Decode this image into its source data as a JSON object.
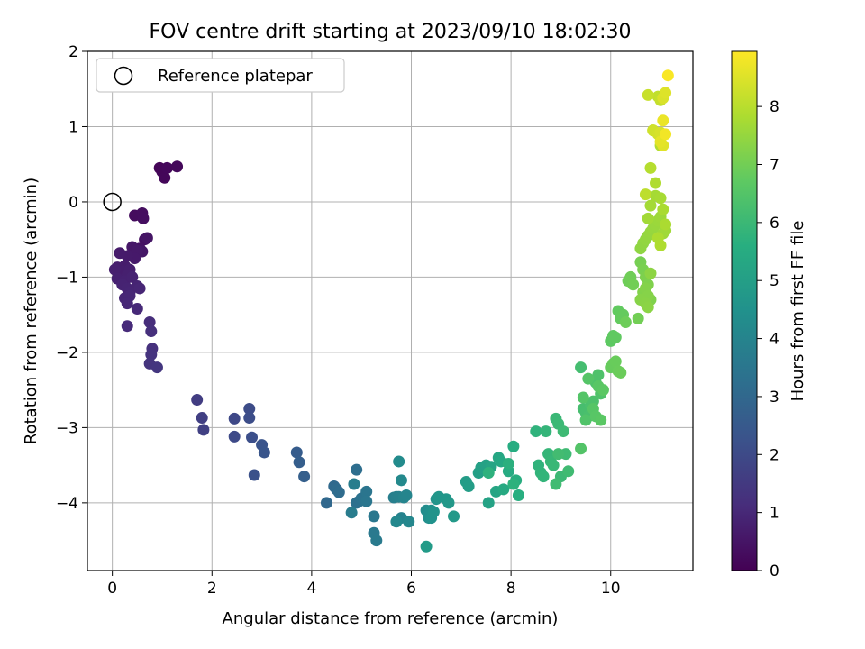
{
  "chart_data": {
    "type": "scatter",
    "title": "FOV centre drift starting at 2023/09/10 18:02:30",
    "xlabel": "Angular distance from reference (arcmin)",
    "ylabel": "Rotation from reference (arcmin)",
    "xlim": [
      -0.5,
      11.65
    ],
    "ylim": [
      -4.9,
      2.0
    ],
    "xticks": [
      0,
      2,
      4,
      6,
      8,
      10
    ],
    "yticks": [
      2,
      1,
      0,
      -1,
      -2,
      -3,
      -4
    ],
    "grid": true,
    "legend": {
      "position": "top-left",
      "entries": [
        {
          "label": "Reference platepar",
          "marker": "open-circle"
        }
      ]
    },
    "reference_point": {
      "x": 0,
      "y": 0
    },
    "colorbar": {
      "label": "Hours from first FF file",
      "colormap": "viridis",
      "range": [
        0,
        8.95
      ],
      "ticks": [
        0,
        1,
        2,
        3,
        4,
        5,
        6,
        7,
        8
      ]
    },
    "series": [
      {
        "x": [
          0.95,
          1.0,
          1.05,
          1.1,
          1.3,
          0.45,
          0.6,
          0.62,
          0.65,
          0.55,
          0.7,
          0.6,
          0.4,
          0.5,
          0.45,
          0.3,
          0.15,
          0.25,
          0.1,
          0.2,
          0.35,
          0.05,
          0.3,
          0.1,
          0.25,
          0.4,
          0.2,
          0.3,
          0.5,
          0.35,
          0.55,
          0.25,
          0.35,
          0.3,
          0.5,
          0.3,
          0.75,
          0.78,
          0.8,
          0.78,
          0.75,
          0.9
        ],
        "y": [
          0.45,
          0.4,
          0.32,
          0.45,
          0.47,
          -0.18,
          -0.15,
          -0.22,
          -0.5,
          -0.62,
          -0.48,
          -0.66,
          -0.6,
          -0.65,
          -0.75,
          -0.72,
          -0.68,
          -0.85,
          -0.87,
          -0.92,
          -0.9,
          -0.9,
          -0.98,
          -1.02,
          -1.05,
          -1.0,
          -1.1,
          -1.15,
          -1.12,
          -1.2,
          -1.15,
          -1.28,
          -1.25,
          -1.35,
          -1.42,
          -1.65,
          -1.6,
          -1.72,
          -1.95,
          -2.03,
          -2.15,
          -2.2
        ],
        "t": [
          0.1,
          0.12,
          0.14,
          0.16,
          0.18,
          0.3,
          0.32,
          0.34,
          0.4,
          0.45,
          0.5,
          0.55,
          0.58,
          0.6,
          0.62,
          0.64,
          0.66,
          0.68,
          0.7,
          0.72,
          0.74,
          0.76,
          0.78,
          0.8,
          0.82,
          0.84,
          0.86,
          0.88,
          0.9,
          0.92,
          0.94,
          0.96,
          0.98,
          1.0,
          1.02,
          1.08,
          1.15,
          1.2,
          1.25,
          1.3,
          1.35,
          1.4
        ]
      },
      {
        "x": [
          1.7,
          1.8,
          1.83,
          2.45,
          2.45,
          2.75,
          2.75,
          2.8,
          2.85,
          3.0,
          3.05,
          3.7,
          3.75,
          3.85,
          4.3,
          4.45,
          4.5,
          4.55,
          4.9,
          4.95,
          4.9,
          5.0,
          5.05,
          5.1,
          5.1,
          5.25,
          5.25,
          5.3,
          4.8,
          4.85
        ],
        "y": [
          -2.63,
          -2.87,
          -3.03,
          -2.88,
          -3.12,
          -2.75,
          -2.87,
          -3.13,
          -3.63,
          -3.23,
          -3.33,
          -3.33,
          -3.46,
          -3.65,
          -4.0,
          -3.78,
          -3.82,
          -3.86,
          -3.56,
          -3.98,
          -4.0,
          -3.94,
          -3.96,
          -3.85,
          -3.98,
          -4.18,
          -4.4,
          -4.5,
          -4.13,
          -3.75
        ],
        "t": [
          1.6,
          1.65,
          1.7,
          1.95,
          2.0,
          2.05,
          2.1,
          2.15,
          2.2,
          2.3,
          2.35,
          2.6,
          2.65,
          2.7,
          3.0,
          3.05,
          3.1,
          3.15,
          3.2,
          3.25,
          3.3,
          3.35,
          3.4,
          3.45,
          3.5,
          3.55,
          3.6,
          3.65,
          3.7,
          3.75
        ]
      },
      {
        "x": [
          5.65,
          5.7,
          5.75,
          5.8,
          5.85,
          5.9,
          5.95,
          5.7,
          5.8,
          5.75,
          6.3,
          6.35,
          6.35,
          6.4,
          6.4,
          6.45,
          6.5,
          6.55,
          6.7,
          6.75,
          6.85,
          6.3,
          7.1,
          7.15,
          7.35,
          7.4,
          7.5,
          7.55,
          7.6,
          7.7,
          7.75,
          7.8,
          7.85,
          7.95,
          8.05,
          8.1,
          8.15,
          7.95,
          8.05,
          7.55
        ],
        "y": [
          -3.93,
          -3.92,
          -3.92,
          -4.2,
          -3.93,
          -3.9,
          -4.25,
          -4.25,
          -3.7,
          -3.45,
          -4.1,
          -4.15,
          -4.2,
          -4.1,
          -4.2,
          -4.12,
          -3.95,
          -3.92,
          -3.95,
          -4.0,
          -4.18,
          -4.58,
          -3.72,
          -3.78,
          -3.6,
          -3.53,
          -3.5,
          -4.0,
          -3.52,
          -3.85,
          -3.4,
          -3.45,
          -3.82,
          -3.58,
          -3.25,
          -3.7,
          -3.9,
          -3.48,
          -3.75,
          -3.6
        ],
        "t": [
          3.8,
          3.85,
          3.9,
          3.95,
          4.0,
          4.05,
          4.1,
          4.15,
          4.2,
          4.25,
          4.3,
          4.35,
          4.4,
          4.45,
          4.5,
          4.55,
          4.6,
          4.65,
          4.7,
          4.75,
          4.8,
          4.85,
          4.9,
          4.95,
          5.0,
          5.05,
          5.1,
          5.15,
          5.2,
          5.25,
          5.3,
          5.35,
          5.4,
          5.45,
          5.5,
          5.55,
          5.6,
          5.65,
          5.7,
          5.72
        ]
      },
      {
        "x": [
          8.5,
          8.55,
          8.6,
          8.65,
          8.7,
          8.75,
          8.8,
          8.85,
          8.9,
          8.95,
          9.0,
          9.05,
          9.1,
          9.15,
          8.9,
          8.95,
          9.4,
          9.45,
          9.5,
          9.55,
          9.6,
          9.65,
          9.7,
          9.75,
          9.8,
          9.5,
          9.4,
          9.45,
          9.55,
          9.65,
          9.7,
          9.75,
          9.8,
          9.85,
          10.0,
          10.05,
          10.1,
          10.15,
          10.2,
          10.25,
          10.0,
          10.05,
          10.1,
          10.15,
          10.2,
          10.3,
          10.35,
          10.4,
          10.45,
          10.55
        ],
        "y": [
          -3.05,
          -3.5,
          -3.6,
          -3.65,
          -3.05,
          -3.35,
          -3.45,
          -3.5,
          -2.88,
          -2.95,
          -3.65,
          -3.05,
          -3.35,
          -3.58,
          -3.75,
          -3.35,
          -2.2,
          -2.75,
          -2.8,
          -2.85,
          -2.7,
          -2.65,
          -2.4,
          -2.3,
          -2.55,
          -2.9,
          -3.28,
          -2.6,
          -2.35,
          -2.75,
          -2.85,
          -2.45,
          -2.9,
          -2.5,
          -1.85,
          -1.78,
          -1.8,
          -1.45,
          -1.55,
          -1.5,
          -2.2,
          -2.15,
          -2.12,
          -2.25,
          -2.27,
          -1.6,
          -1.05,
          -1.0,
          -1.1,
          -1.55
        ],
        "t": [
          5.75,
          5.78,
          5.8,
          5.83,
          5.86,
          5.89,
          5.92,
          5.95,
          5.98,
          6.0,
          6.02,
          6.05,
          6.08,
          6.1,
          6.12,
          6.15,
          6.2,
          6.23,
          6.26,
          6.29,
          6.32,
          6.35,
          6.38,
          6.4,
          6.42,
          6.45,
          6.48,
          6.5,
          6.52,
          6.55,
          6.58,
          6.6,
          6.62,
          6.65,
          6.7,
          6.72,
          6.74,
          6.76,
          6.78,
          6.8,
          6.82,
          6.84,
          6.86,
          6.88,
          6.9,
          6.92,
          6.94,
          6.96,
          6.98,
          7.0
        ]
      },
      {
        "x": [
          10.6,
          10.65,
          10.7,
          10.75,
          10.8,
          10.65,
          10.7,
          10.75,
          10.6,
          10.7,
          10.75,
          10.8,
          10.6,
          10.65,
          10.7,
          10.75,
          10.8,
          10.85,
          10.9,
          10.95,
          11.0,
          11.05,
          11.1,
          10.75,
          10.8,
          10.9,
          11.0,
          11.05,
          11.1,
          10.95,
          11.0,
          10.9,
          11.0,
          10.8,
          10.85,
          10.7,
          10.95,
          11.0
        ],
        "y": [
          -0.8,
          -0.9,
          -1.0,
          -1.1,
          -1.3,
          -1.2,
          -1.15,
          -1.25,
          -1.3,
          -1.35,
          -1.4,
          -0.95,
          -0.62,
          -0.55,
          -0.5,
          -0.45,
          -0.4,
          -0.35,
          -0.3,
          -0.25,
          -0.2,
          -0.42,
          -0.38,
          -0.22,
          -0.05,
          0.08,
          0.05,
          -0.1,
          -0.3,
          -0.48,
          -0.58,
          0.25,
          0.75,
          0.45,
          0.95,
          0.1,
          1.4,
          1.35
        ],
        "t": [
          7.05,
          7.1,
          7.15,
          7.18,
          7.2,
          7.22,
          7.25,
          7.28,
          7.3,
          7.32,
          7.35,
          7.38,
          7.4,
          7.42,
          7.45,
          7.48,
          7.5,
          7.52,
          7.55,
          7.58,
          7.6,
          7.62,
          7.65,
          7.68,
          7.7,
          7.72,
          7.75,
          7.78,
          7.8,
          7.82,
          7.85,
          7.88,
          7.9,
          7.95,
          8.0,
          8.05,
          8.1,
          8.15
        ]
      },
      {
        "x": [
          10.75,
          10.85,
          10.95,
          11.0,
          11.05,
          11.1,
          11.05,
          11.0,
          11.05,
          11.1,
          11.15
        ],
        "y": [
          1.42,
          0.95,
          0.9,
          0.92,
          1.38,
          1.45,
          0.75,
          0.8,
          1.08,
          0.9,
          1.68
        ],
        "t": [
          8.2,
          8.3,
          8.35,
          8.4,
          8.45,
          8.5,
          8.55,
          8.6,
          8.7,
          8.8,
          8.9
        ]
      }
    ]
  }
}
